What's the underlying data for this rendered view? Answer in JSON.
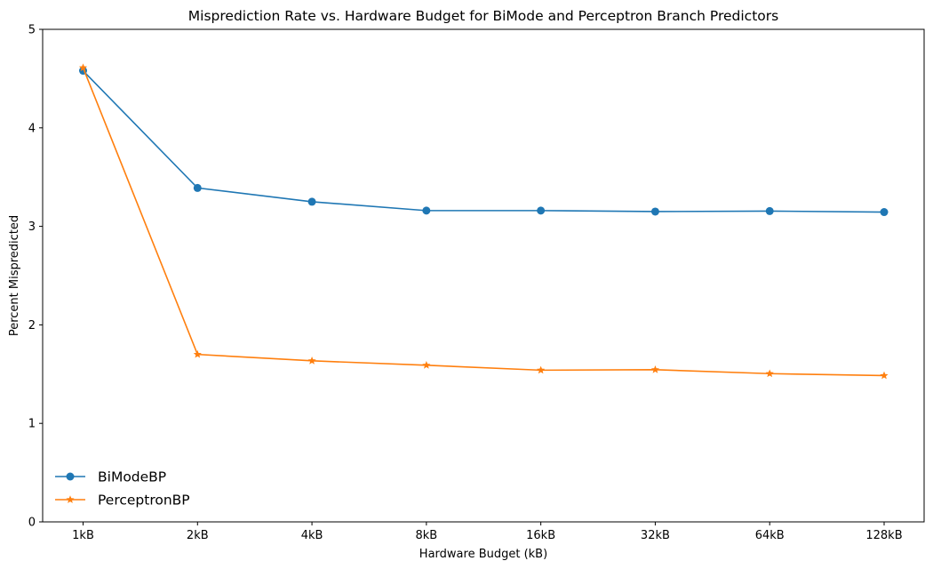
{
  "chart_data": {
    "type": "line",
    "title": "Misprediction Rate vs. Hardware Budget for BiMode and Perceptron Branch Predictors",
    "xlabel": "Hardware Budget (kB)",
    "ylabel": "Percent Mispredicted",
    "categories": [
      "1kB",
      "2kB",
      "4kB",
      "8kB",
      "16kB",
      "32kB",
      "64kB",
      "128kB"
    ],
    "ylim": [
      0,
      5
    ],
    "yticks": [
      "0",
      "1",
      "2",
      "3",
      "4",
      "5"
    ],
    "grid": false,
    "legend_position": "lower-left",
    "series": [
      {
        "name": "BiModeBP",
        "color": "#1f77b4",
        "marker": "circle",
        "values": [
          4.58,
          3.39,
          3.25,
          3.16,
          3.16,
          3.15,
          3.155,
          3.145
        ]
      },
      {
        "name": "PerceptronBP",
        "color": "#ff7f0e",
        "marker": "star",
        "values": [
          4.61,
          1.7,
          1.635,
          1.59,
          1.54,
          1.545,
          1.505,
          1.485
        ]
      }
    ]
  }
}
